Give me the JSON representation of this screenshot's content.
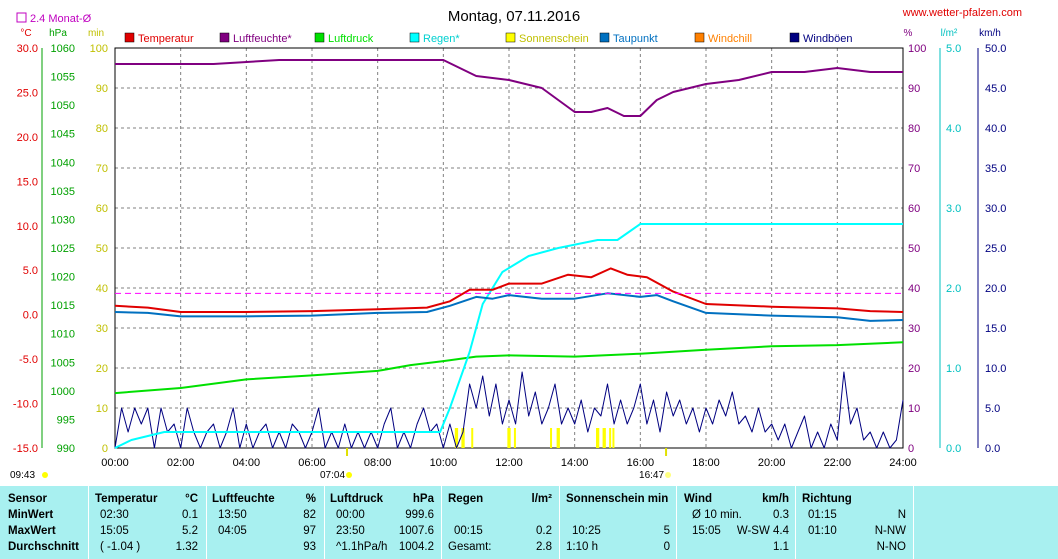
{
  "header": {
    "title": "Montag, 07.11.2016",
    "website": "www.wetter-pfalzen.com",
    "avg_label": "2.4 Monat-Ø",
    "sunrise": "07:04",
    "sunset": "16:47",
    "start_time": "09:43"
  },
  "axis_units": {
    "temp": "°C",
    "hpa": "hPa",
    "min": "min",
    "pct": "%",
    "lm2": "l/m²",
    "kmh": "km/h"
  },
  "colors": {
    "temperatur": "#e00000",
    "luftfeuchte": "#800080",
    "luftdruck": "#00e000",
    "regen": "#00ffff",
    "sonnenschein": "#ffff00",
    "taupunkt": "#0070c0",
    "windchill": "#ff8000",
    "windboeen": "#000080",
    "avg_line": "#ff00ff",
    "grid": "#808080",
    "table_bg": "#a8f0f0"
  },
  "chart_data": {
    "type": "line",
    "x_ticks": [
      "00:00",
      "02:00",
      "04:00",
      "06:00",
      "08:00",
      "10:00",
      "12:00",
      "14:00",
      "16:00",
      "18:00",
      "20:00",
      "22:00",
      "24:00"
    ],
    "axes": {
      "temp_c": {
        "label": "°C",
        "range": [
          -15,
          30
        ],
        "ticks": [
          "30.0",
          "25.0",
          "20.0",
          "15.0",
          "10.0",
          "5.0",
          "0.0",
          "-5.0",
          "-10.0",
          "-15.0"
        ]
      },
      "pressure_hpa": {
        "label": "hPa",
        "range": [
          990,
          1060
        ],
        "ticks": [
          "1060",
          "1055",
          "1050",
          "1045",
          "1040",
          "1035",
          "1030",
          "1025",
          "1020",
          "1015",
          "1010",
          "1005",
          "1000",
          "995",
          "990"
        ]
      },
      "sun_min": {
        "label": "min",
        "range": [
          0,
          100
        ],
        "ticks": [
          "100",
          "90",
          "80",
          "70",
          "60",
          "50",
          "40",
          "30",
          "20",
          "10",
          "0"
        ]
      },
      "humidity_pct": {
        "label": "%",
        "range": [
          0,
          100
        ],
        "ticks": [
          "100",
          "90",
          "80",
          "70",
          "60",
          "50",
          "40",
          "30",
          "20",
          "10",
          "0"
        ]
      },
      "rain_lm2": {
        "label": "l/m²",
        "range": [
          0,
          5
        ],
        "ticks": [
          "5.0",
          "4.0",
          "3.0",
          "2.0",
          "1.0",
          "0.0"
        ]
      },
      "wind_kmh": {
        "label": "km/h",
        "range": [
          0,
          50
        ],
        "ticks": [
          "50.0",
          "45.0",
          "40.0",
          "35.0",
          "30.0",
          "25.0",
          "20.0",
          "15.0",
          "10.0",
          "5.0",
          "0.0"
        ]
      }
    },
    "legend": [
      {
        "key": "temperatur",
        "name": "Temperatur"
      },
      {
        "key": "luftfeuchte",
        "name": "Luftfeuchte*"
      },
      {
        "key": "luftdruck",
        "name": "Luftdruck"
      },
      {
        "key": "regen",
        "name": "Regen*"
      },
      {
        "key": "sonnenschein",
        "name": "Sonnenschein"
      },
      {
        "key": "taupunkt",
        "name": "Taupunkt"
      },
      {
        "key": "windchill",
        "name": "Windchill"
      },
      {
        "key": "windboeen",
        "name": "Windböen"
      }
    ],
    "avg_line_temp_c": 2.4,
    "series": {
      "temperatur": {
        "axis": "temp_c",
        "points": [
          [
            0,
            1.0
          ],
          [
            1,
            0.8
          ],
          [
            2,
            0.3
          ],
          [
            4,
            0.3
          ],
          [
            6,
            0.4
          ],
          [
            8,
            0.6
          ],
          [
            9.5,
            0.8
          ],
          [
            10.2,
            1.5
          ],
          [
            10.8,
            2.8
          ],
          [
            11.5,
            2.8
          ],
          [
            12.0,
            3.5
          ],
          [
            13.0,
            3.5
          ],
          [
            13.8,
            4.5
          ],
          [
            14.5,
            4.2
          ],
          [
            15.1,
            5.2
          ],
          [
            15.6,
            4.5
          ],
          [
            16.2,
            4.2
          ],
          [
            17.0,
            2.6
          ],
          [
            18.0,
            1.2
          ],
          [
            20.0,
            0.9
          ],
          [
            22.0,
            0.7
          ],
          [
            23.0,
            0.4
          ],
          [
            24.0,
            0.3
          ]
        ]
      },
      "luftfeuchte": {
        "axis": "humidity_pct",
        "points": [
          [
            0,
            96
          ],
          [
            3,
            96
          ],
          [
            5,
            97
          ],
          [
            7,
            97
          ],
          [
            10,
            97
          ],
          [
            11,
            93
          ],
          [
            12,
            92
          ],
          [
            13,
            90
          ],
          [
            14,
            84
          ],
          [
            14.5,
            84
          ],
          [
            15,
            85
          ],
          [
            15.5,
            83
          ],
          [
            16,
            83
          ],
          [
            16.5,
            87
          ],
          [
            17,
            89
          ],
          [
            18,
            91
          ],
          [
            19,
            92
          ],
          [
            20,
            94
          ],
          [
            21,
            94
          ],
          [
            22,
            95
          ],
          [
            23,
            94
          ],
          [
            24,
            94
          ]
        ]
      },
      "luftdruck": {
        "axis": "pressure_hpa",
        "points": [
          [
            0,
            999.6
          ],
          [
            2,
            1000.5
          ],
          [
            4,
            1002
          ],
          [
            6,
            1002.7
          ],
          [
            8,
            1003.5
          ],
          [
            9,
            1004.5
          ],
          [
            10,
            1005.2
          ],
          [
            11,
            1006
          ],
          [
            12,
            1006.2
          ],
          [
            14,
            1006
          ],
          [
            16,
            1006.5
          ],
          [
            18,
            1007.2
          ],
          [
            20,
            1007.8
          ],
          [
            22,
            1008
          ],
          [
            24,
            1008.5
          ]
        ]
      },
      "regen": {
        "axis": "rain_lm2",
        "points": [
          [
            0,
            0
          ],
          [
            0.5,
            0.1
          ],
          [
            1.5,
            0.2
          ],
          [
            3,
            0.2
          ],
          [
            6,
            0.2
          ],
          [
            8,
            0.2
          ],
          [
            9,
            0.2
          ],
          [
            9.9,
            0.2
          ],
          [
            10.2,
            0.5
          ],
          [
            10.8,
            1.2
          ],
          [
            11.2,
            1.8
          ],
          [
            11.8,
            2.2
          ],
          [
            12.6,
            2.4
          ],
          [
            13.5,
            2.5
          ],
          [
            14.7,
            2.6
          ],
          [
            15.3,
            2.6
          ],
          [
            16,
            2.8
          ],
          [
            18,
            2.8
          ],
          [
            20,
            2.8
          ],
          [
            22,
            2.8
          ],
          [
            24,
            2.8
          ]
        ]
      },
      "taupunkt": {
        "axis": "temp_c",
        "points": [
          [
            0,
            0.3
          ],
          [
            1,
            0.2
          ],
          [
            2,
            -0.2
          ],
          [
            4,
            -0.2
          ],
          [
            6,
            -0.1
          ],
          [
            8,
            0.2
          ],
          [
            9.5,
            0.3
          ],
          [
            10.2,
            1.0
          ],
          [
            11,
            2.0
          ],
          [
            11.5,
            1.8
          ],
          [
            12,
            2.2
          ],
          [
            13,
            1.8
          ],
          [
            14,
            1.8
          ],
          [
            15,
            2.4
          ],
          [
            16,
            2.0
          ],
          [
            16.5,
            2.2
          ],
          [
            17,
            1.5
          ],
          [
            18,
            0.2
          ],
          [
            20,
            -0.1
          ],
          [
            22,
            -0.3
          ],
          [
            23,
            -0.7
          ],
          [
            24,
            -0.6
          ]
        ]
      },
      "windboeen": {
        "axis": "wind_kmh",
        "points": [
          [
            0,
            0
          ],
          [
            0.2,
            5
          ],
          [
            0.4,
            2
          ],
          [
            0.6,
            5
          ],
          [
            0.8,
            3
          ],
          [
            1.0,
            5
          ],
          [
            1.2,
            0
          ],
          [
            1.4,
            5
          ],
          [
            1.6,
            2
          ],
          [
            1.8,
            3
          ],
          [
            2.0,
            0
          ],
          [
            2.2,
            5
          ],
          [
            2.4,
            2
          ],
          [
            2.6,
            0
          ],
          [
            2.8,
            2
          ],
          [
            3.0,
            3
          ],
          [
            3.2,
            0
          ],
          [
            3.4,
            2
          ],
          [
            3.6,
            5
          ],
          [
            3.8,
            0
          ],
          [
            4.0,
            3
          ],
          [
            4.2,
            0
          ],
          [
            4.4,
            2
          ],
          [
            4.6,
            3
          ],
          [
            4.8,
            0
          ],
          [
            5.0,
            2
          ],
          [
            5.2,
            0
          ],
          [
            5.4,
            3
          ],
          [
            5.6,
            2
          ],
          [
            5.8,
            0
          ],
          [
            6.0,
            2
          ],
          [
            6.2,
            5
          ],
          [
            6.4,
            0
          ],
          [
            6.6,
            2
          ],
          [
            6.8,
            0
          ],
          [
            7.0,
            3
          ],
          [
            7.2,
            0
          ],
          [
            7.4,
            2
          ],
          [
            7.6,
            0
          ],
          [
            7.8,
            2
          ],
          [
            8.0,
            0
          ],
          [
            8.2,
            3
          ],
          [
            8.4,
            5
          ],
          [
            8.6,
            0
          ],
          [
            8.8,
            2
          ],
          [
            9.0,
            0
          ],
          [
            9.2,
            3
          ],
          [
            9.4,
            5
          ],
          [
            9.6,
            2
          ],
          [
            9.8,
            3
          ],
          [
            10.0,
            0
          ],
          [
            10.2,
            3
          ],
          [
            10.4,
            0
          ],
          [
            10.6,
            2
          ],
          [
            10.8,
            8
          ],
          [
            11.0,
            5
          ],
          [
            11.2,
            9
          ],
          [
            11.4,
            4
          ],
          [
            11.6,
            8
          ],
          [
            11.8,
            3
          ],
          [
            12.0,
            6
          ],
          [
            12.2,
            3
          ],
          [
            12.4,
            9.5
          ],
          [
            12.6,
            4
          ],
          [
            12.8,
            7
          ],
          [
            13.0,
            3
          ],
          [
            13.2,
            5
          ],
          [
            13.4,
            8
          ],
          [
            13.6,
            3
          ],
          [
            13.8,
            5
          ],
          [
            14.0,
            3
          ],
          [
            14.2,
            6
          ],
          [
            14.4,
            2
          ],
          [
            14.6,
            5
          ],
          [
            14.8,
            4
          ],
          [
            15.0,
            8
          ],
          [
            15.2,
            3
          ],
          [
            15.4,
            6
          ],
          [
            15.6,
            3
          ],
          [
            15.8,
            5
          ],
          [
            16.0,
            8
          ],
          [
            16.2,
            3
          ],
          [
            16.4,
            6
          ],
          [
            16.6,
            2
          ],
          [
            16.8,
            7
          ],
          [
            17.0,
            4
          ],
          [
            17.2,
            6
          ],
          [
            17.4,
            3
          ],
          [
            17.6,
            5
          ],
          [
            17.8,
            2
          ],
          [
            18.0,
            5
          ],
          [
            18.2,
            3
          ],
          [
            18.4,
            6
          ],
          [
            18.6,
            4
          ],
          [
            18.8,
            7
          ],
          [
            19.0,
            3
          ],
          [
            19.2,
            4
          ],
          [
            19.4,
            2
          ],
          [
            19.6,
            5
          ],
          [
            19.8,
            2
          ],
          [
            20.0,
            3
          ],
          [
            20.2,
            1
          ],
          [
            20.4,
            3
          ],
          [
            20.6,
            0
          ],
          [
            20.8,
            2
          ],
          [
            21.0,
            4
          ],
          [
            21.2,
            0
          ],
          [
            21.4,
            2
          ],
          [
            21.6,
            0
          ],
          [
            21.8,
            3
          ],
          [
            22.0,
            1
          ],
          [
            22.2,
            9.5
          ],
          [
            22.4,
            3
          ],
          [
            22.6,
            5
          ],
          [
            22.8,
            1
          ],
          [
            23.0,
            2
          ],
          [
            23.2,
            0
          ],
          [
            23.4,
            2
          ],
          [
            23.6,
            0
          ],
          [
            23.8,
            1
          ],
          [
            24.0,
            6
          ]
        ]
      }
    },
    "sunshine_bars": [
      [
        10.35,
        10.45
      ],
      [
        10.55,
        10.65
      ],
      [
        10.85,
        10.9
      ],
      [
        11.95,
        12.05
      ],
      [
        12.15,
        12.2
      ],
      [
        13.25,
        13.3
      ],
      [
        13.45,
        13.55
      ],
      [
        14.65,
        14.75
      ],
      [
        14.85,
        14.95
      ],
      [
        15.05,
        15.1
      ],
      [
        15.15,
        15.2
      ]
    ]
  },
  "table": {
    "headers": {
      "sensor": "Sensor",
      "temperatur": "Temperatur",
      "temp_unit": "°C",
      "luftfeuchte": "Luftfeuchte",
      "lf_unit": "%",
      "luftdruck": "Luftdruck",
      "ld_unit": "hPa",
      "regen": "Regen",
      "regen_unit": "l/m²",
      "sonnenschein": "Sonnenschein min",
      "wind": "Wind",
      "wind_unit": "km/h",
      "richtung": "Richtung"
    },
    "rows": [
      {
        "label": "MinWert",
        "temp_time": "02:30",
        "temp_val": "0.1",
        "lf_time": "13:50",
        "lf_val": "82",
        "ld_time": "00:00",
        "ld_val": "999.6",
        "regen_time": "",
        "regen_val": "",
        "sun_time": "",
        "sun_val": "",
        "wind_time": "Ø 10 min.",
        "wind_val": "0.3",
        "dir_time": "01:15",
        "dir_val": "N"
      },
      {
        "label": "MaxWert",
        "temp_time": "15:05",
        "temp_val": "5.2",
        "lf_time": "04:05",
        "lf_val": "97",
        "ld_time": "23:50",
        "ld_val": "1007.6",
        "regen_time": "00:15",
        "regen_val": "0.2",
        "sun_time": "10:25",
        "sun_val": "5",
        "wind_time": "15:05",
        "wind_val": "W-SW 4.4",
        "dir_time": "01:10",
        "dir_val": "N-NW"
      },
      {
        "label": "Durchschnitt",
        "temp_time": "( -1.04 )",
        "temp_val": "1.32",
        "lf_time": "",
        "lf_val": "93",
        "ld_time": "^1.1hPa/h",
        "ld_val": "1004.2",
        "regen_time": "Gesamt:",
        "regen_val": "2.8",
        "sun_time": "1:10 h",
        "sun_val": "0",
        "wind_time": "",
        "wind_val": "1.1",
        "dir_time": "",
        "dir_val": "N-NO"
      }
    ]
  }
}
